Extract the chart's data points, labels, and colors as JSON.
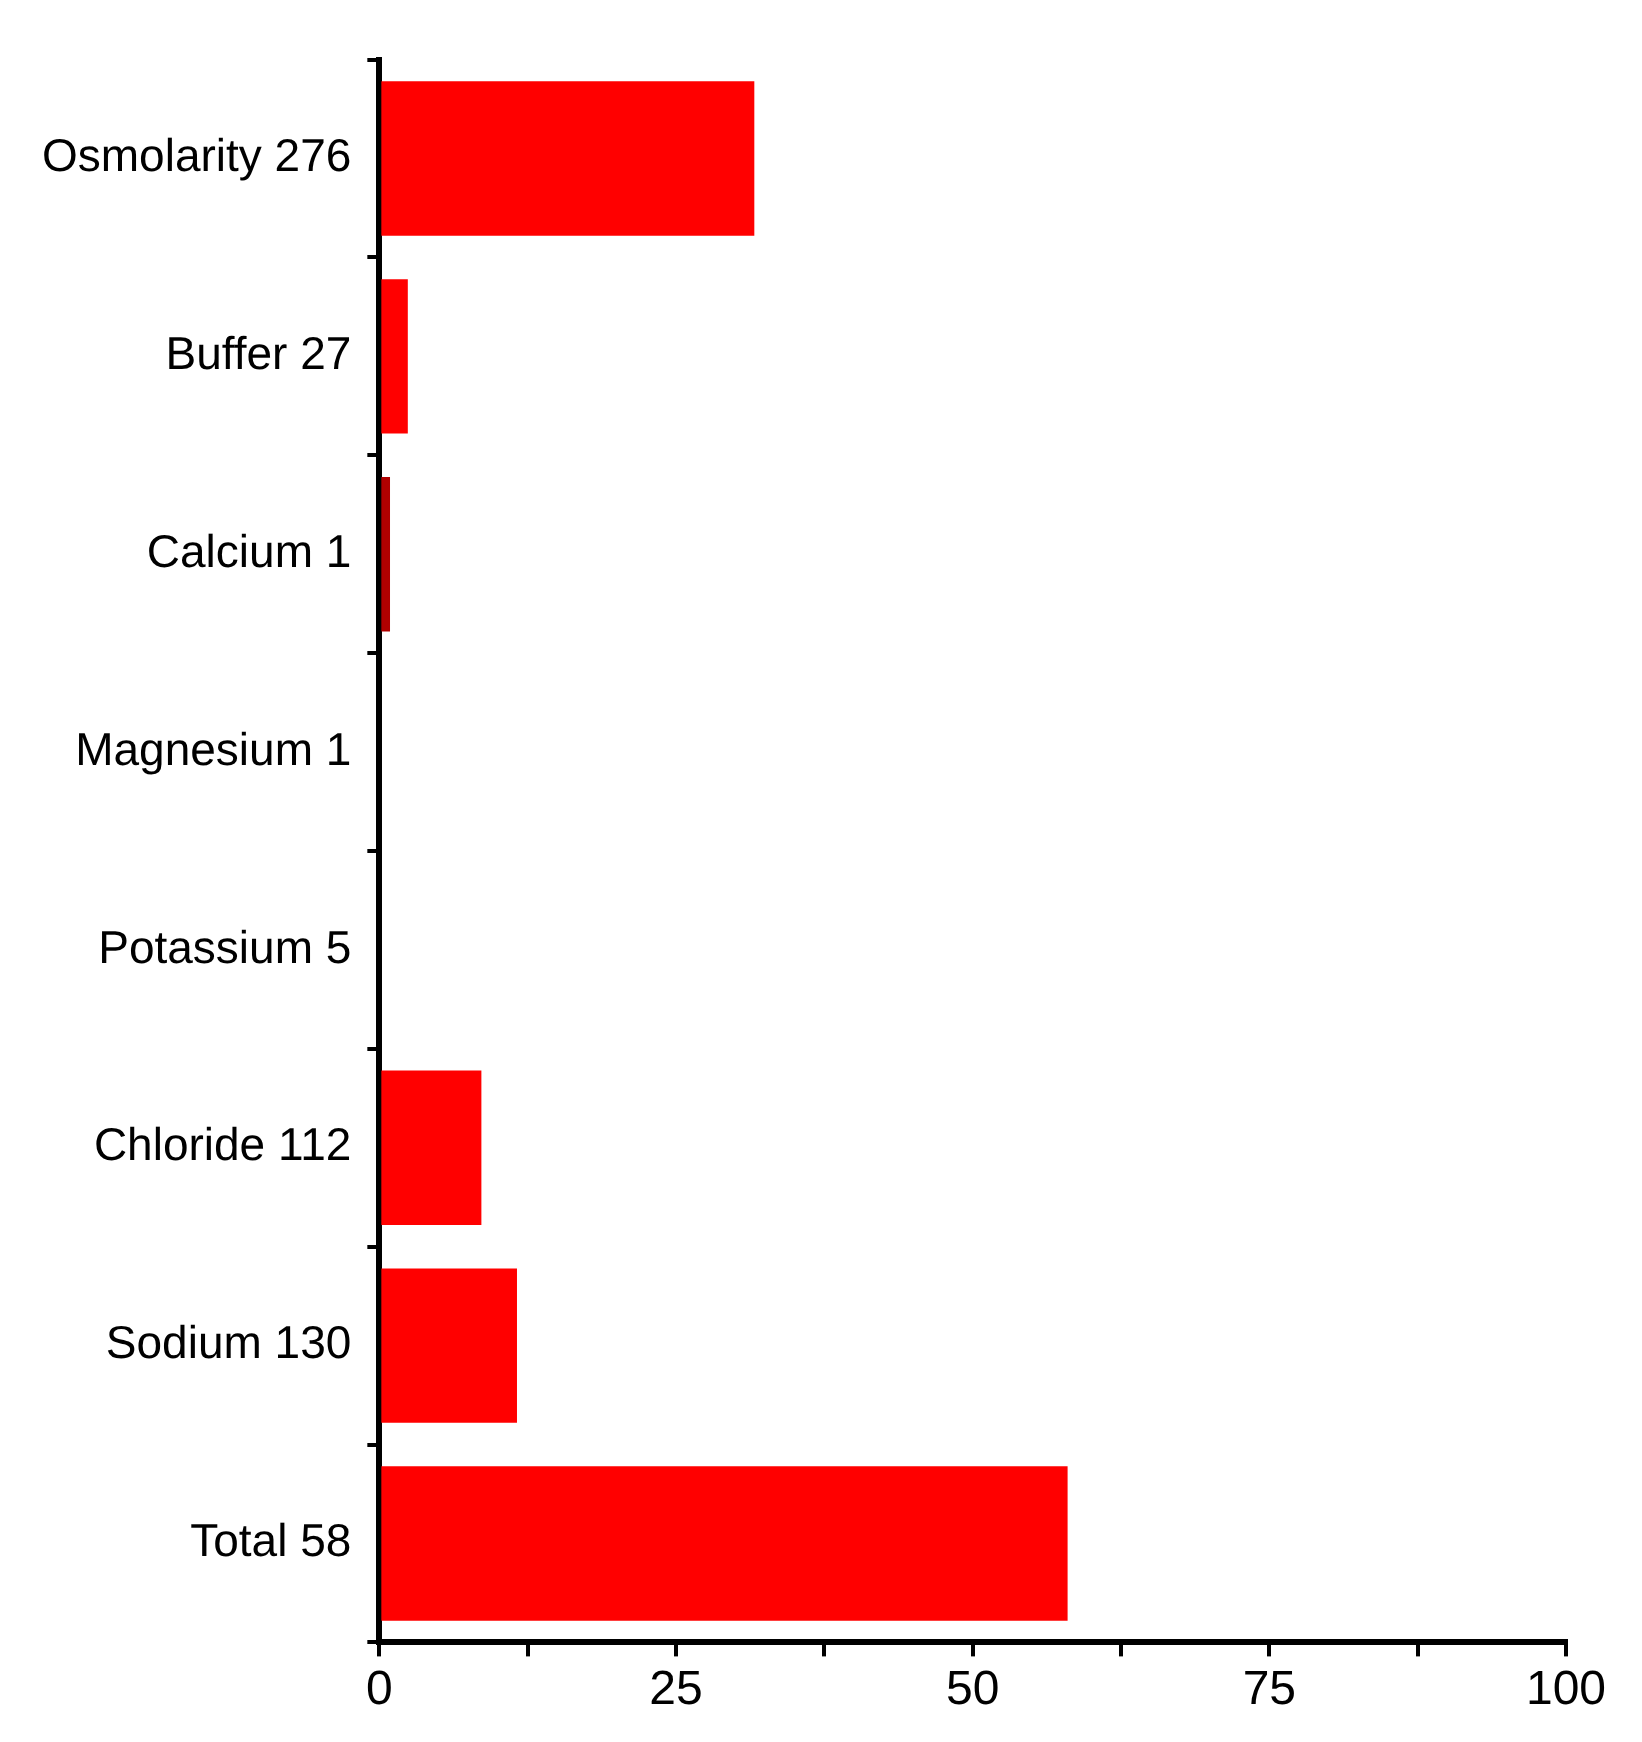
{
  "chart_data": {
    "type": "bar",
    "orientation": "horizontal",
    "categories": [
      "Osmolarity 276",
      "Buffer 27",
      "Calcium 1",
      "Magnesium 1",
      "Potassium 5",
      "Chloride 112",
      "Sodium 130",
      "Total 58"
    ],
    "values": [
      31.6,
      2.4,
      0.9,
      0,
      0,
      8.6,
      11.6,
      58.0
    ],
    "colors": [
      "#ff0000",
      "#ff0000",
      "#b00000",
      "#ff0000",
      "#ff0000",
      "#ff0000",
      "#ff0000",
      "#ff0000"
    ],
    "xlim": [
      0,
      100
    ],
    "xticks": [
      0,
      {
        "value": 12.5,
        "label": null
      },
      25,
      {
        "value": 37.5,
        "label": null
      },
      50,
      {
        "value": 62.5,
        "label": null
      },
      75,
      {
        "value": 87.5,
        "label": null
      },
      100
    ],
    "grid": false,
    "legend": false
  }
}
